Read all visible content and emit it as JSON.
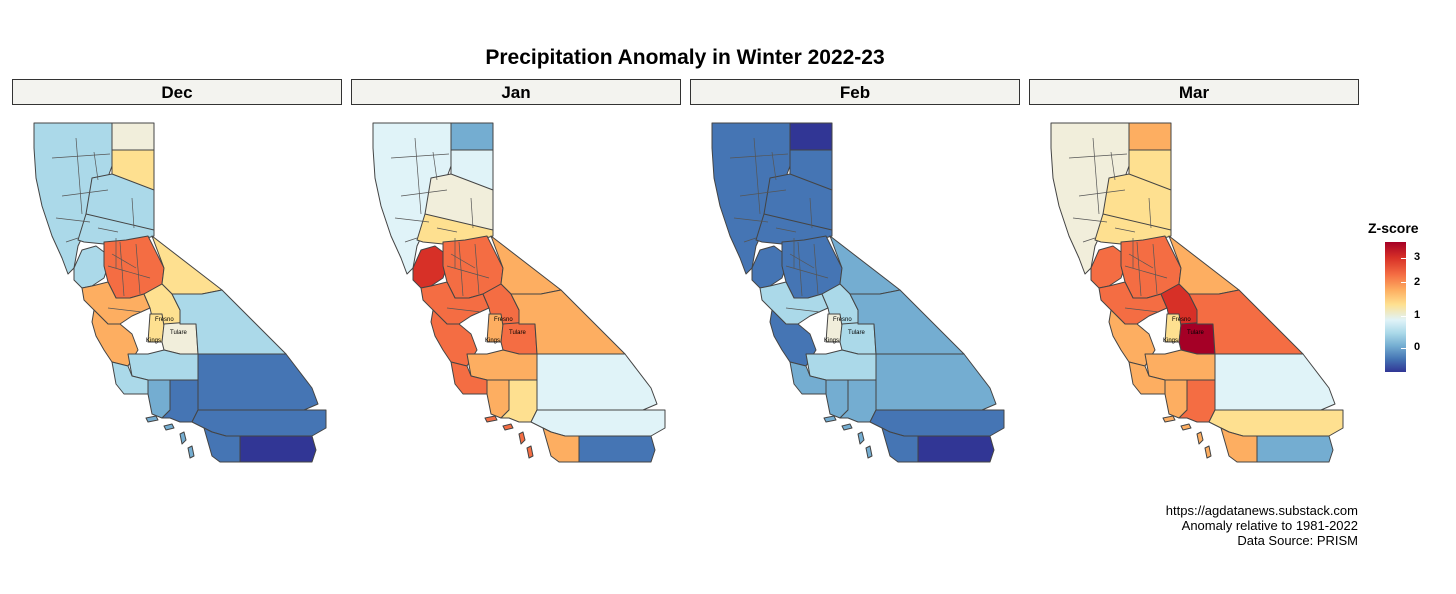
{
  "title": "Precipitation Anomaly in Winter 2022-23",
  "palette": {
    "dk": "#313695",
    "db": "#4575b4",
    "mb": "#74add1",
    "lb": "#abd9e9",
    "vl": "#e0f3f8",
    "cr": "#f1eedb",
    "ly": "#fee090",
    "or": "#fdae61",
    "do": "#f46d43",
    "rd": "#d73027",
    "dr": "#a50026"
  },
  "county_labels": [
    "Fresno",
    "Kings",
    "Tulare"
  ],
  "panels": [
    {
      "label": "Dec",
      "regions": {
        "nw": "lb",
        "ne": "cr",
        "ne2": "ly",
        "nbelt": "lb",
        "sierra": "lb",
        "bay": "lb",
        "foothill": "do",
        "central": "ly",
        "sjv": "or",
        "fresno": "ly",
        "kings": "ly",
        "tulare": "cr",
        "inyo": "lb",
        "coast": "or",
        "kern": "lb",
        "slo": "lb",
        "sb": "mb",
        "la": "db",
        "sbern": "db",
        "riv": "db",
        "sd": "db",
        "imp": "dk",
        "islands": "mb"
      }
    },
    {
      "label": "Jan",
      "regions": {
        "nw": "vl",
        "ne": "mb",
        "ne2": "vl",
        "nbelt": "cr",
        "sierra": "ly",
        "bay": "rd",
        "foothill": "do",
        "central": "or",
        "sjv": "do",
        "fresno": "do",
        "kings": "or",
        "tulare": "do",
        "inyo": "or",
        "coast": "do",
        "kern": "or",
        "slo": "do",
        "sb": "or",
        "la": "ly",
        "sbern": "vl",
        "riv": "vl",
        "sd": "or",
        "imp": "db",
        "islands": "do"
      }
    },
    {
      "label": "Feb",
      "regions": {
        "nw": "db",
        "ne": "dk",
        "ne2": "db",
        "nbelt": "db",
        "sierra": "db",
        "bay": "db",
        "foothill": "db",
        "central": "mb",
        "sjv": "lb",
        "fresno": "lb",
        "kings": "cr",
        "tulare": "lb",
        "inyo": "mb",
        "coast": "db",
        "kern": "lb",
        "slo": "mb",
        "sb": "mb",
        "la": "mb",
        "sbern": "mb",
        "riv": "db",
        "sd": "db",
        "imp": "dk",
        "islands": "mb"
      }
    },
    {
      "label": "Mar",
      "regions": {
        "nw": "cr",
        "ne": "or",
        "ne2": "ly",
        "nbelt": "ly",
        "sierra": "ly",
        "bay": "do",
        "foothill": "do",
        "central": "or",
        "sjv": "do",
        "fresno": "rd",
        "kings": "ly",
        "tulare": "dr",
        "inyo": "do",
        "coast": "or",
        "kern": "or",
        "slo": "or",
        "sb": "or",
        "la": "do",
        "sbern": "vl",
        "riv": "ly",
        "sd": "or",
        "imp": "mb",
        "islands": "or"
      }
    }
  ],
  "legend": {
    "title": "Z-score",
    "ticks": [
      "3",
      "2",
      "1",
      "0"
    ]
  },
  "caption": [
    "https://agdatanews.substack.com",
    "Anomaly relative to 1981-2022",
    "Data Source: PRISM"
  ]
}
